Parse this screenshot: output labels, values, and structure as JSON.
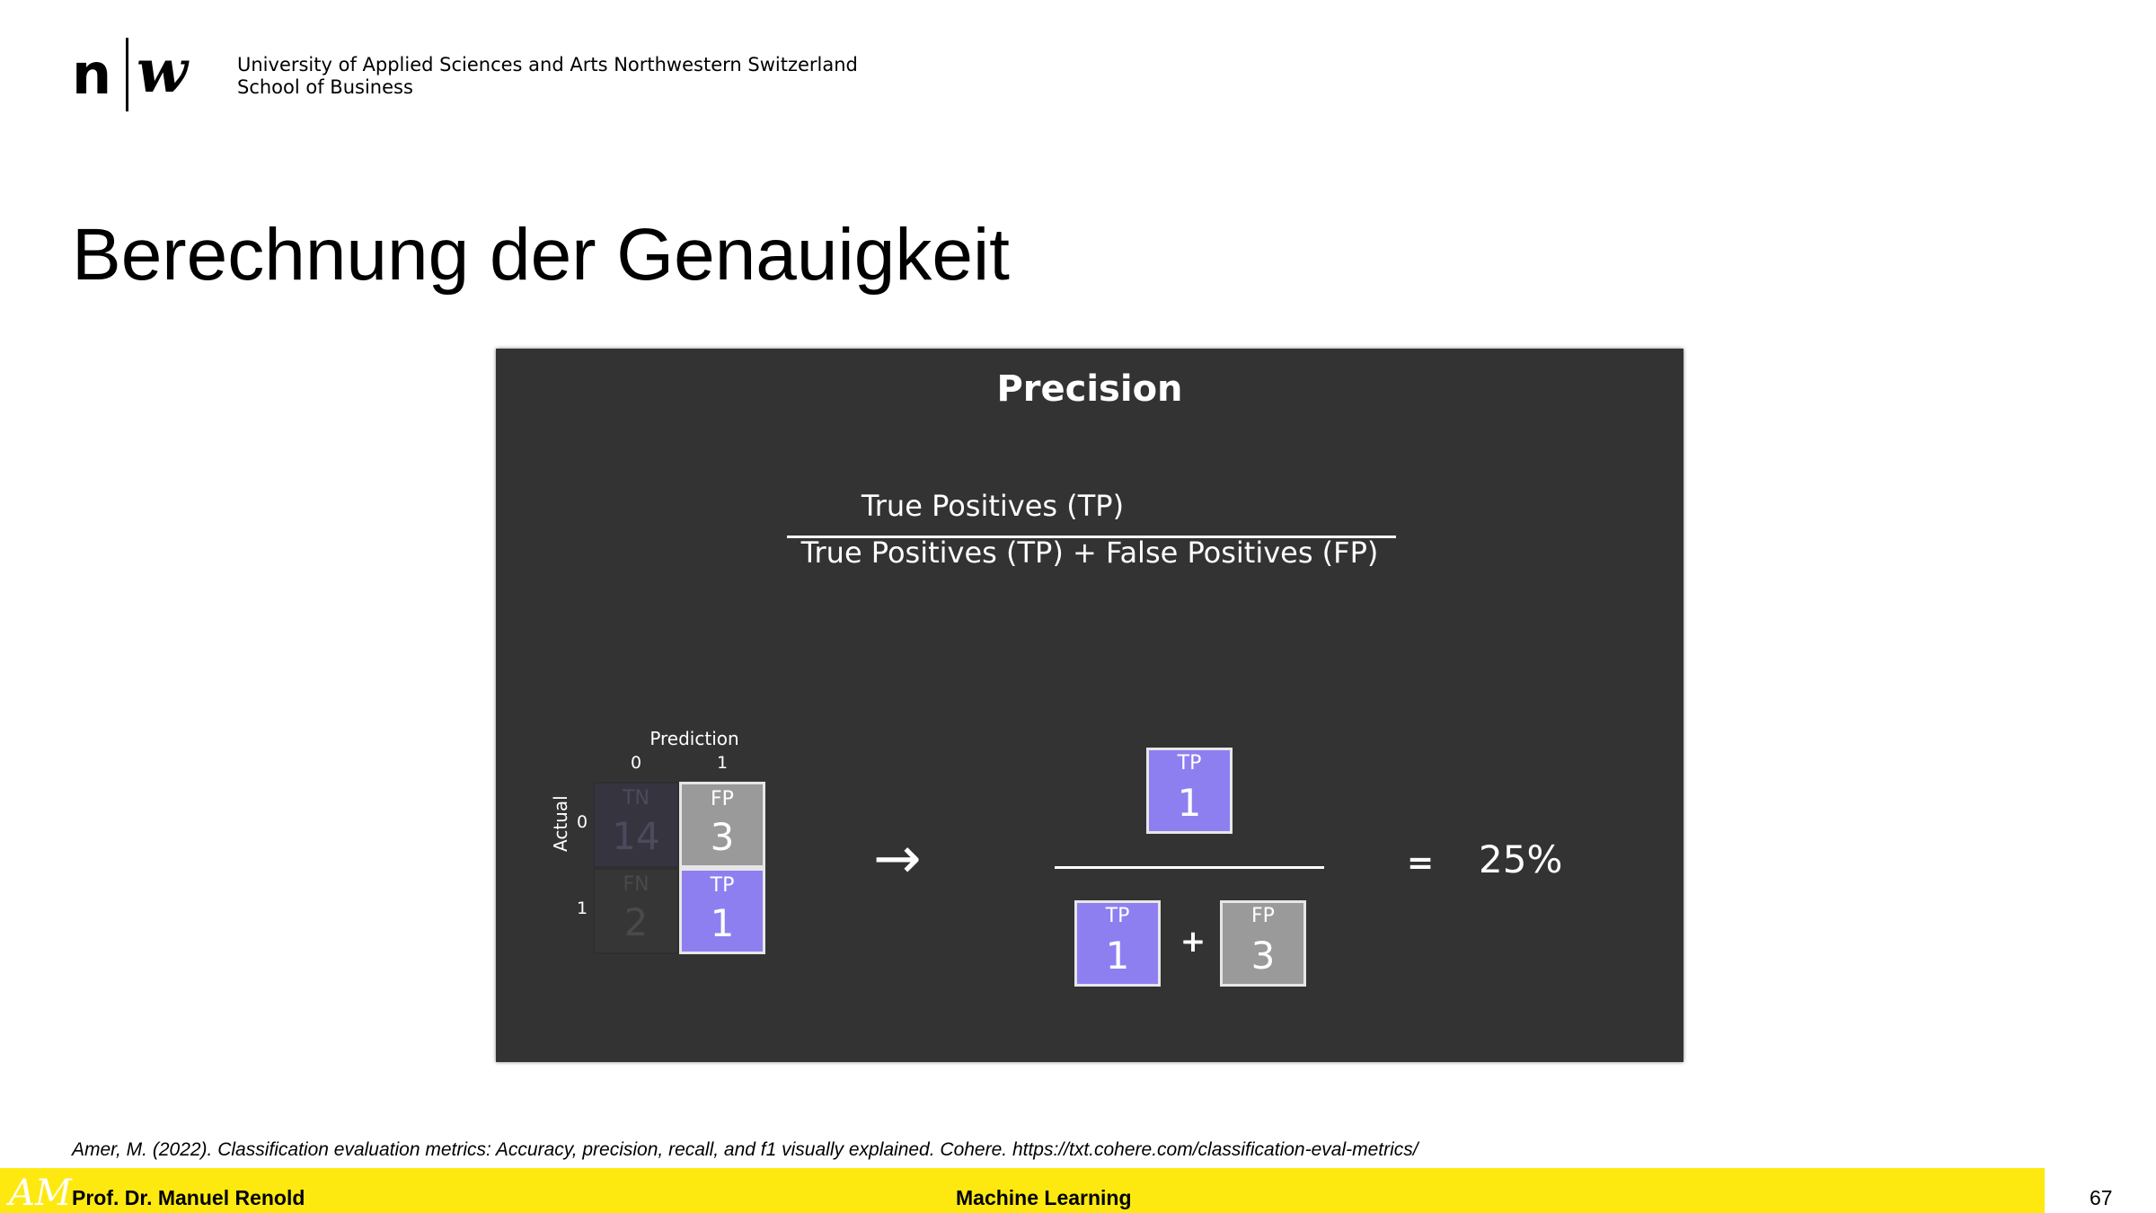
{
  "header": {
    "logo_n": "n",
    "logo_w": "w",
    "institution_line1": "University of Applied Sciences and Arts Northwestern Switzerland",
    "institution_line2": "School of Business"
  },
  "slide": {
    "title": "Berechnung der Genauigkeit"
  },
  "panel": {
    "title": "Precision",
    "formula_numerator": "True Positives (TP)",
    "formula_denominator": "True Positives (TP) + False Positives (FP)",
    "matrix": {
      "prediction_label": "Prediction",
      "actual_label": "Actual",
      "col_labels": [
        "0",
        "1"
      ],
      "row_labels": [
        "0",
        "1"
      ],
      "cells": {
        "tn": {
          "label": "TN",
          "value": "14"
        },
        "fp": {
          "label": "FP",
          "value": "3"
        },
        "fn": {
          "label": "FN",
          "value": "2"
        },
        "tp": {
          "label": "TP",
          "value": "1"
        }
      }
    },
    "arrow": "→",
    "calc": {
      "numerator": {
        "label": "TP",
        "value": "1"
      },
      "denominator_tp": {
        "label": "TP",
        "value": "1"
      },
      "plus": "+",
      "denominator_fp": {
        "label": "FP",
        "value": "3"
      },
      "equals": "=",
      "result": "25%"
    },
    "colors": {
      "tp": "#8e7ff1",
      "fp": "#9a9a9a",
      "panel_bg": "#333333"
    }
  },
  "citation": "Amer, M. (2022). Classification evaluation metrics: Accuracy, precision, recall, and f1 visually explained. Cohere. https://txt.cohere.com/classification-eval-metrics/",
  "footer": {
    "logo": "AM",
    "author": "Prof. Dr. Manuel Renold",
    "course": "Machine Learning",
    "page_number": "67",
    "bar_color": "#fde910"
  }
}
